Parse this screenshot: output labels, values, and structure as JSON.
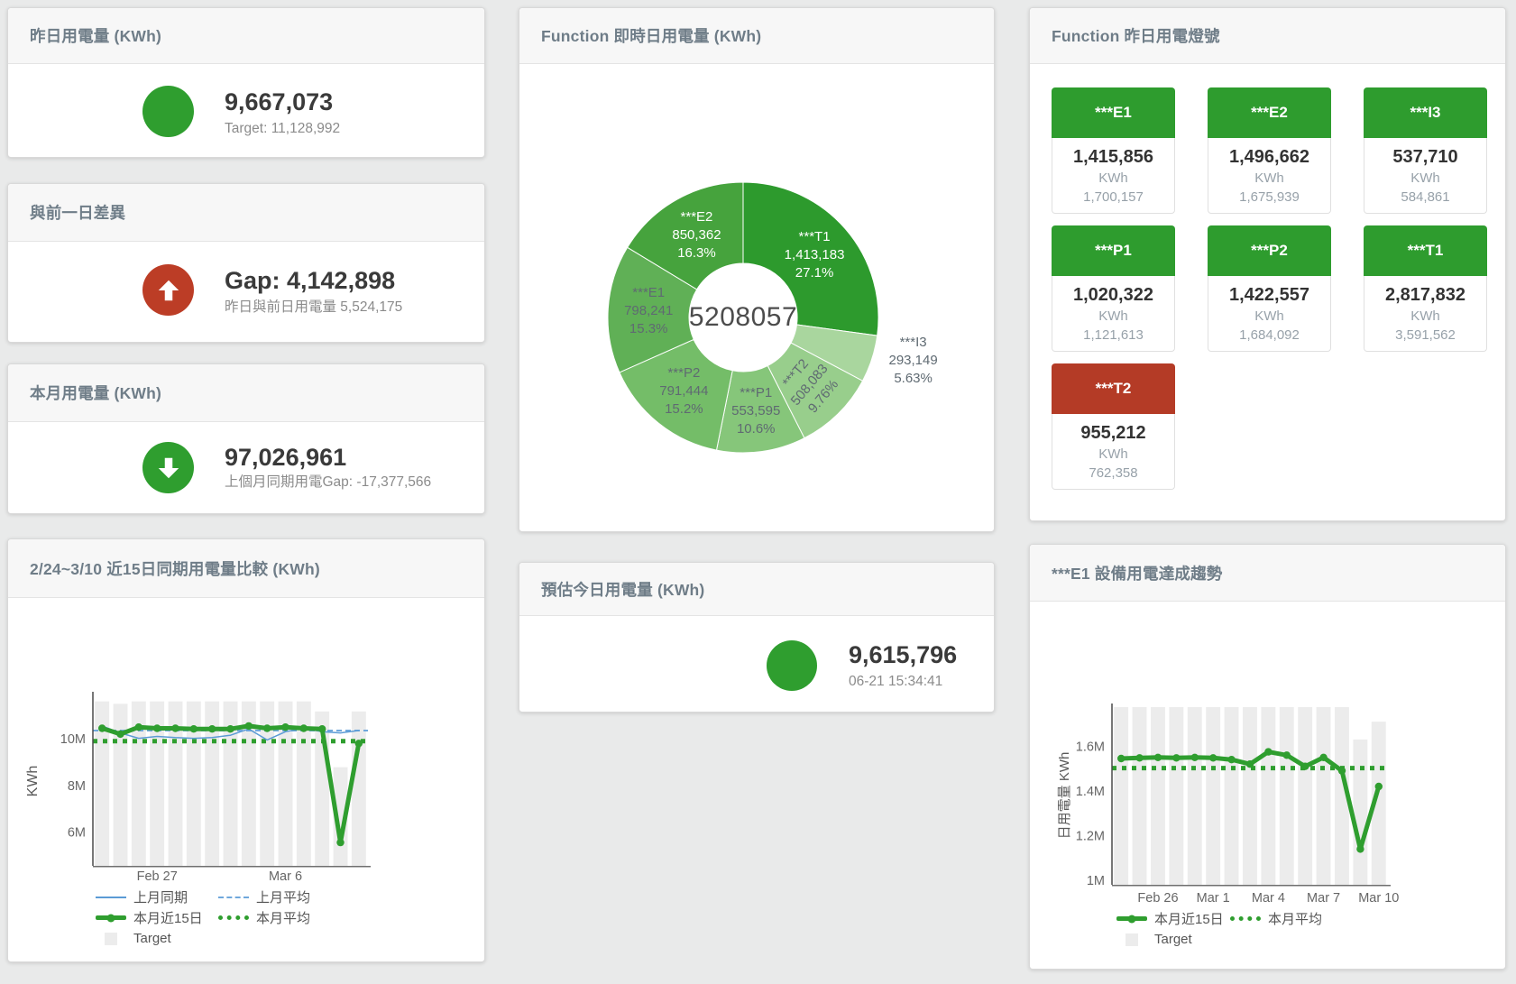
{
  "colors": {
    "green": "#2f9e2f",
    "red": "#bc3d26",
    "blue_line": "#5b9bd5",
    "blue_dash": "#6fa8dc",
    "bar_gray": "#ececec"
  },
  "cards": {
    "yesterday": {
      "title": "昨日用電量 (KWh)",
      "value": "9,667,073",
      "sub": "Target: 11,128,992",
      "icon": "circle",
      "icon_color": "#2f9e2f"
    },
    "day_gap": {
      "title": "與前一日差異",
      "value": "Gap: 4,142,898",
      "sub": "昨日與前日用電量 5,524,175",
      "icon": "arrow-up",
      "icon_color": "#bc3d26"
    },
    "month": {
      "title": "本月用電量 (KWh)",
      "value": "97,026,961",
      "sub": "上個月同期用電Gap: -17,377,566",
      "icon": "arrow-down",
      "icon_color": "#2f9e2f"
    },
    "compare": {
      "title": "2/24~3/10 近15日同期用電量比較 (KWh)"
    },
    "donut": {
      "title": "Function 即時日用電量 (KWh)"
    },
    "estimate": {
      "title": "預估今日用電量 (KWh)",
      "value": "9,615,796",
      "sub": "06-21 15:34:41",
      "icon": "circle",
      "icon_color": "#2f9e2f"
    },
    "lights": {
      "title": "Function 昨日用電燈號"
    },
    "trend": {
      "title": "***E1 設備用電達成趨勢"
    }
  },
  "lights": {
    "unit": "KWh",
    "colors": {
      "ok": "#2e9c2e",
      "alert": "#b43b26"
    },
    "tiles": [
      {
        "name": "***E1",
        "value": "1,415,856",
        "target": "1,700,157",
        "status": "ok"
      },
      {
        "name": "***E2",
        "value": "1,496,662",
        "target": "1,675,939",
        "status": "ok"
      },
      {
        "name": "***I3",
        "value": "537,710",
        "target": "584,861",
        "status": "ok"
      },
      {
        "name": "***P1",
        "value": "1,020,322",
        "target": "1,121,613",
        "status": "ok"
      },
      {
        "name": "***P2",
        "value": "1,422,557",
        "target": "1,684,092",
        "status": "ok"
      },
      {
        "name": "***T1",
        "value": "2,817,832",
        "target": "3,591,562",
        "status": "ok"
      },
      {
        "name": "***T2",
        "value": "955,212",
        "target": "762,358",
        "status": "alert"
      }
    ]
  },
  "chart_data": [
    {
      "type": "pie",
      "title": "Function 即時日用電量 (KWh)",
      "center_label": "5208057",
      "legend_position": "none",
      "slices": [
        {
          "name": "***T1",
          "value": 1413183,
          "display": "1,413,183",
          "pct": "27.1%",
          "color": "#2d9a2d",
          "label_color": "#ffffff",
          "label_pos": "inside"
        },
        {
          "name": "***I3",
          "value": 293149,
          "display": "293,149",
          "pct": "5.63%",
          "color": "#a9d69e",
          "label_color": "#5f6a72",
          "label_pos": "outside",
          "label_offset": [
            2,
            -12
          ]
        },
        {
          "name": "***T2",
          "value": 508083,
          "display": "508,083",
          "pct": "9.76%",
          "color": "#98ce8c",
          "label_color": "#5f6a72",
          "label_pos": "inside",
          "label_rotate": -50
        },
        {
          "name": "***P1",
          "value": 553595,
          "display": "553,595",
          "pct": "10.6%",
          "color": "#86c67a",
          "label_color": "#5f6a72",
          "label_pos": "inside"
        },
        {
          "name": "***P2",
          "value": 791444,
          "display": "791,444",
          "pct": "15.2%",
          "color": "#74bd68",
          "label_color": "#5f6a72",
          "label_pos": "inside"
        },
        {
          "name": "***E1",
          "value": 798241,
          "display": "798,241",
          "pct": "15.3%",
          "color": "#60b056",
          "label_color": "#5f6a72",
          "label_pos": "inside"
        },
        {
          "name": "***E2",
          "value": 850362,
          "display": "850,362",
          "pct": "16.3%",
          "color": "#46a33d",
          "label_color": "#ffffff",
          "label_pos": "inside"
        }
      ]
    },
    {
      "type": "line",
      "title": "2/24~3/10 近15日同期用電量比較 (KWh)",
      "ylabel": "KWh",
      "unit": "M",
      "grid": false,
      "legend_position": "bottom-left",
      "ylim": [
        4.55,
        11.86
      ],
      "x_count": 15,
      "x_range": [
        "Feb 24",
        "Mar 10"
      ],
      "x_ticks": [
        {
          "index": 3,
          "label": "Feb 27"
        },
        {
          "index": 10,
          "label": "Mar 6"
        }
      ],
      "y_ticks": [
        {
          "v": 10,
          "label": "10M"
        },
        {
          "v": 8,
          "label": "8M"
        },
        {
          "v": 6,
          "label": "6M"
        }
      ],
      "bars": {
        "name": "Target",
        "color": "#ececec",
        "values": [
          11.6,
          11.5,
          11.6,
          11.6,
          11.6,
          11.6,
          11.6,
          11.6,
          11.6,
          11.6,
          11.6,
          11.6,
          11.17,
          8.78,
          11.17
        ]
      },
      "series": [
        {
          "name": "上月同期",
          "color": "#5b9bd5",
          "width": 1.5,
          "style": "solid",
          "values": [
            10.55,
            10.25,
            10.02,
            10.1,
            10.05,
            10.02,
            10.05,
            10.15,
            10.42,
            9.95,
            10.3,
            10.45,
            10.3,
            10.25,
            10.35
          ]
        },
        {
          "name": "本月近15日",
          "color": "#2f9e2f",
          "width": 5,
          "style": "solid",
          "values": [
            10.45,
            10.2,
            10.5,
            10.45,
            10.45,
            10.42,
            10.42,
            10.42,
            10.55,
            10.45,
            10.5,
            10.45,
            10.42,
            5.55,
            9.8
          ]
        }
      ],
      "ref_lines": [
        {
          "name": "上月平均",
          "color": "#6fa8dc",
          "style": "dashed",
          "value": 10.35
        },
        {
          "name": "本月平均",
          "color": "#2f9e2f",
          "style": "dotted",
          "value": 9.9
        }
      ]
    },
    {
      "type": "line",
      "title": "***E1 設備用電達成趨勢",
      "ylabel": "日用電量 KWh",
      "unit": "M",
      "grid": false,
      "legend_position": "bottom-left",
      "ylim": [
        0.98,
        1.775
      ],
      "x_count": 15,
      "x_range": [
        "Feb 24",
        "Mar 10"
      ],
      "x_ticks": [
        {
          "index": 2,
          "label": "Feb 26"
        },
        {
          "index": 5,
          "label": "Mar 1"
        },
        {
          "index": 8,
          "label": "Mar 4"
        },
        {
          "index": 11,
          "label": "Mar 7"
        },
        {
          "index": 14,
          "label": "Mar 10"
        }
      ],
      "y_ticks": [
        {
          "v": 1.6,
          "label": "1.6M"
        },
        {
          "v": 1.4,
          "label": "1.4M"
        },
        {
          "v": 1.2,
          "label": "1.2M"
        },
        {
          "v": 1,
          "label": "1M"
        }
      ],
      "bars": {
        "name": "Target",
        "color": "#ececec",
        "values": [
          1.78,
          1.78,
          1.78,
          1.78,
          1.78,
          1.78,
          1.78,
          1.78,
          1.78,
          1.78,
          1.78,
          1.78,
          1.78,
          1.63,
          1.71
        ]
      },
      "series": [
        {
          "name": "本月近15日",
          "color": "#2f9e2f",
          "width": 5,
          "style": "solid",
          "values": [
            1.545,
            1.548,
            1.55,
            1.548,
            1.55,
            1.548,
            1.54,
            1.52,
            1.575,
            1.56,
            1.51,
            1.55,
            1.49,
            1.14,
            1.42
          ]
        }
      ],
      "ref_lines": [
        {
          "name": "本月平均",
          "color": "#2f9e2f",
          "style": "dotted",
          "value": 1.502
        }
      ]
    }
  ]
}
